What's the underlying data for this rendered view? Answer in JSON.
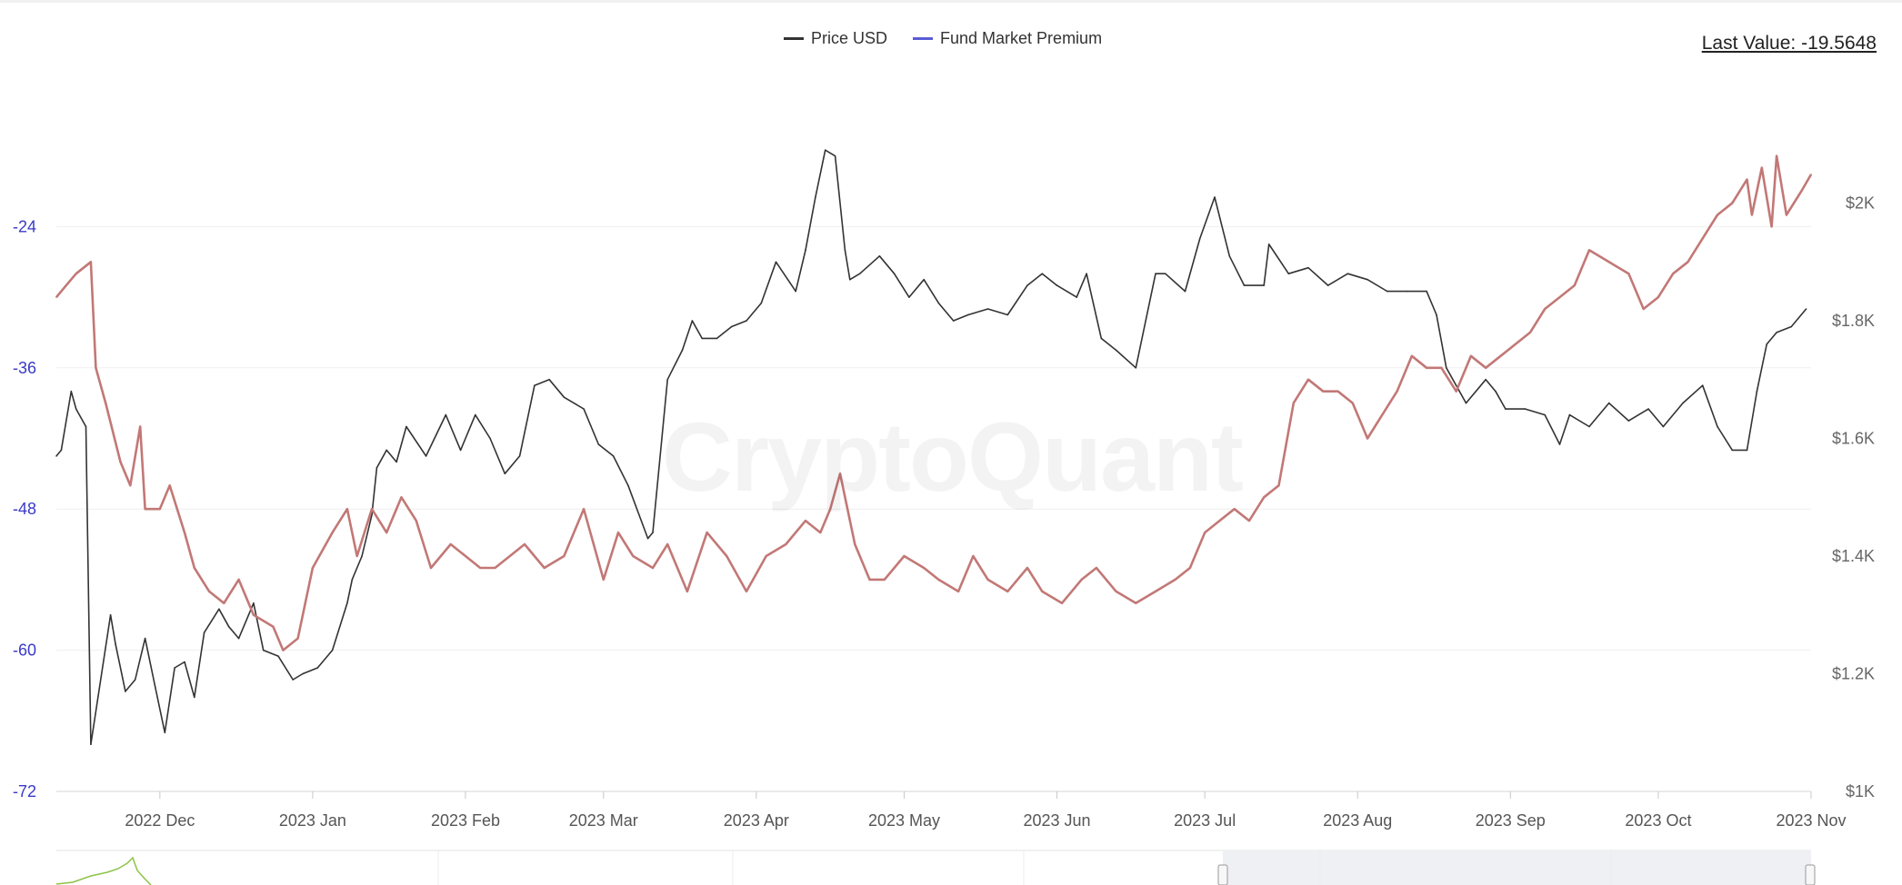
{
  "chart_data": {
    "type": "line",
    "watermark": "CryptoQuant",
    "last_value_label": "Last Value: -19.5648",
    "legend": [
      {
        "name": "Price USD",
        "color": "#333333"
      },
      {
        "name": "Fund Market Premium",
        "color": "#5b5bd6"
      }
    ],
    "x_tick_labels": [
      "2022 Dec",
      "2023 Jan",
      "2023 Feb",
      "2023 Mar",
      "2023 Apr",
      "2023 May",
      "2023 Jun",
      "2023 Jul",
      "2023 Aug",
      "2023 Sep",
      "2023 Oct",
      "2023 Nov"
    ],
    "x_range": [
      "2022-11-10",
      "2023-11-01"
    ],
    "left_axis": {
      "ticks": [
        "-24",
        "-36",
        "-48",
        "-60",
        "-72"
      ],
      "range": [
        -72,
        -12
      ],
      "color": "#3a3ac8"
    },
    "right_axis": {
      "ticks": [
        "$2K",
        "$1.8K",
        "$1.6K",
        "$1.4K",
        "$1.2K",
        "$1K"
      ],
      "range": [
        1000,
        2200
      ],
      "color": "#666666"
    },
    "series": [
      {
        "name": "Price USD",
        "axis": "right",
        "color": "#333333",
        "dates": [
          "2022-11-10",
          "2022-11-11",
          "2022-11-13",
          "2022-11-14",
          "2022-11-16",
          "2022-11-17",
          "2022-11-21",
          "2022-11-22",
          "2022-11-24",
          "2022-11-26",
          "2022-11-28",
          "2022-11-30",
          "2022-12-02",
          "2022-12-04",
          "2022-12-06",
          "2022-12-08",
          "2022-12-10",
          "2022-12-13",
          "2022-12-15",
          "2022-12-17",
          "2022-12-20",
          "2022-12-22",
          "2022-12-25",
          "2022-12-28",
          "2022-12-30",
          "2023-01-02",
          "2023-01-05",
          "2023-01-08",
          "2023-01-09",
          "2023-01-11",
          "2023-01-13",
          "2023-01-14",
          "2023-01-16",
          "2023-01-18",
          "2023-01-20",
          "2023-01-24",
          "2023-01-28",
          "2023-01-31",
          "2023-02-03",
          "2023-02-06",
          "2023-02-09",
          "2023-02-12",
          "2023-02-15",
          "2023-02-18",
          "2023-02-21",
          "2023-02-25",
          "2023-02-28",
          "2023-03-03",
          "2023-03-06",
          "2023-03-10",
          "2023-03-11",
          "2023-03-14",
          "2023-03-17",
          "2023-03-19",
          "2023-03-21",
          "2023-03-24",
          "2023-03-27",
          "2023-03-30",
          "2023-04-02",
          "2023-04-05",
          "2023-04-09",
          "2023-04-11",
          "2023-04-13",
          "2023-04-15",
          "2023-04-17",
          "2023-04-19",
          "2023-04-20",
          "2023-04-22",
          "2023-04-26",
          "2023-04-29",
          "2023-05-02",
          "2023-05-05",
          "2023-05-08",
          "2023-05-11",
          "2023-05-14",
          "2023-05-18",
          "2023-05-22",
          "2023-05-26",
          "2023-05-29",
          "2023-06-01",
          "2023-06-05",
          "2023-06-07",
          "2023-06-10",
          "2023-06-13",
          "2023-06-17",
          "2023-06-21",
          "2023-06-23",
          "2023-06-27",
          "2023-06-30",
          "2023-07-03",
          "2023-07-06",
          "2023-07-09",
          "2023-07-13",
          "2023-07-14",
          "2023-07-18",
          "2023-07-22",
          "2023-07-26",
          "2023-07-30",
          "2023-08-03",
          "2023-08-07",
          "2023-08-11",
          "2023-08-15",
          "2023-08-17",
          "2023-08-19",
          "2023-08-23",
          "2023-08-27",
          "2023-08-29",
          "2023-08-31",
          "2023-09-04",
          "2023-09-08",
          "2023-09-11",
          "2023-09-13",
          "2023-09-17",
          "2023-09-21",
          "2023-09-25",
          "2023-09-29",
          "2023-10-02",
          "2023-10-06",
          "2023-10-10",
          "2023-10-13",
          "2023-10-16",
          "2023-10-19",
          "2023-10-21",
          "2023-10-23",
          "2023-10-25",
          "2023-10-28",
          "2023-10-31"
        ],
        "values": [
          1570,
          1580,
          1680,
          1650,
          1620,
          1080,
          1300,
          1250,
          1170,
          1190,
          1260,
          1180,
          1100,
          1210,
          1220,
          1160,
          1270,
          1310,
          1280,
          1260,
          1320,
          1240,
          1230,
          1190,
          1200,
          1210,
          1240,
          1320,
          1360,
          1400,
          1470,
          1550,
          1580,
          1560,
          1620,
          1570,
          1640,
          1580,
          1640,
          1600,
          1540,
          1570,
          1690,
          1700,
          1670,
          1650,
          1590,
          1570,
          1520,
          1430,
          1440,
          1700,
          1750,
          1800,
          1770,
          1770,
          1790,
          1800,
          1830,
          1900,
          1850,
          1920,
          2010,
          2090,
          2080,
          1920,
          1870,
          1880,
          1910,
          1880,
          1840,
          1870,
          1830,
          1800,
          1810,
          1820,
          1810,
          1860,
          1880,
          1860,
          1840,
          1880,
          1770,
          1750,
          1720,
          1880,
          1880,
          1850,
          1940,
          2010,
          1910,
          1860,
          1860,
          1930,
          1880,
          1890,
          1860,
          1880,
          1870,
          1850,
          1850,
          1850,
          1810,
          1720,
          1660,
          1700,
          1680,
          1650,
          1650,
          1640,
          1590,
          1640,
          1620,
          1660,
          1630,
          1650,
          1620,
          1660,
          1690,
          1620,
          1580,
          1580,
          1680,
          1760,
          1780,
          1790,
          1820
        ]
      },
      {
        "name": "Fund Market Premium",
        "axis": "left",
        "color": "#c27876",
        "dates": [
          "2022-11-10",
          "2022-11-12",
          "2022-11-14",
          "2022-11-17",
          "2022-11-18",
          "2022-11-20",
          "2022-11-23",
          "2022-11-25",
          "2022-11-27",
          "2022-11-28",
          "2022-12-01",
          "2022-12-03",
          "2022-12-06",
          "2022-12-08",
          "2022-12-11",
          "2022-12-14",
          "2022-12-17",
          "2022-12-20",
          "2022-12-24",
          "2022-12-26",
          "2022-12-29",
          "2023-01-01",
          "2023-01-05",
          "2023-01-08",
          "2023-01-10",
          "2023-01-13",
          "2023-01-16",
          "2023-01-19",
          "2023-01-22",
          "2023-01-25",
          "2023-01-29",
          "2023-02-01",
          "2023-02-04",
          "2023-02-07",
          "2023-02-10",
          "2023-02-13",
          "2023-02-17",
          "2023-02-21",
          "2023-02-25",
          "2023-03-01",
          "2023-03-04",
          "2023-03-07",
          "2023-03-11",
          "2023-03-14",
          "2023-03-18",
          "2023-03-22",
          "2023-03-26",
          "2023-03-30",
          "2023-04-03",
          "2023-04-07",
          "2023-04-11",
          "2023-04-14",
          "2023-04-16",
          "2023-04-18",
          "2023-04-21",
          "2023-04-24",
          "2023-04-27",
          "2023-05-01",
          "2023-05-05",
          "2023-05-08",
          "2023-05-12",
          "2023-05-15",
          "2023-05-18",
          "2023-05-22",
          "2023-05-26",
          "2023-05-29",
          "2023-06-02",
          "2023-06-06",
          "2023-06-09",
          "2023-06-13",
          "2023-06-17",
          "2023-06-21",
          "2023-06-25",
          "2023-06-28",
          "2023-07-01",
          "2023-07-04",
          "2023-07-07",
          "2023-07-10",
          "2023-07-13",
          "2023-07-16",
          "2023-07-19",
          "2023-07-22",
          "2023-07-25",
          "2023-07-28",
          "2023-07-31",
          "2023-08-03",
          "2023-08-06",
          "2023-08-09",
          "2023-08-12",
          "2023-08-15",
          "2023-08-18",
          "2023-08-21",
          "2023-08-24",
          "2023-08-27",
          "2023-08-30",
          "2023-09-02",
          "2023-09-05",
          "2023-09-08",
          "2023-09-11",
          "2023-09-14",
          "2023-09-17",
          "2023-09-21",
          "2023-09-25",
          "2023-09-28",
          "2023-10-01",
          "2023-10-04",
          "2023-10-07",
          "2023-10-10",
          "2023-10-13",
          "2023-10-16",
          "2023-10-19",
          "2023-10-20",
          "2023-10-22",
          "2023-10-24",
          "2023-10-25",
          "2023-10-27",
          "2023-10-30",
          "2023-11-01"
        ],
        "values": [
          -30,
          -29,
          -28,
          -27,
          -36,
          -39,
          -44,
          -46,
          -41,
          -48,
          -48,
          -46,
          -50,
          -53,
          -55,
          -56,
          -54,
          -57,
          -58,
          -60,
          -59,
          -53,
          -50,
          -48,
          -52,
          -48,
          -50,
          -47,
          -49,
          -53,
          -51,
          -52,
          -53,
          -53,
          -52,
          -51,
          -53,
          -52,
          -48,
          -54,
          -50,
          -52,
          -53,
          -51,
          -55,
          -50,
          -52,
          -55,
          -52,
          -51,
          -49,
          -50,
          -48,
          -45,
          -51,
          -54,
          -54,
          -52,
          -53,
          -54,
          -55,
          -52,
          -54,
          -55,
          -53,
          -55,
          -56,
          -54,
          -53,
          -55,
          -56,
          -55,
          -54,
          -53,
          -50,
          -49,
          -48,
          -49,
          -47,
          -46,
          -39,
          -37,
          -38,
          -38,
          -39,
          -42,
          -40,
          -38,
          -35,
          -36,
          -36,
          -38,
          -35,
          -36,
          -35,
          -34,
          -33,
          -31,
          -30,
          -29,
          -26,
          -27,
          -28,
          -31,
          -30,
          -28,
          -27,
          -25,
          -23,
          -22,
          -20,
          -23,
          -19,
          -24,
          -18,
          -23,
          -21,
          -19.5648
        ]
      }
    ]
  },
  "navigator": {
    "series_color": "#8bc34a"
  }
}
